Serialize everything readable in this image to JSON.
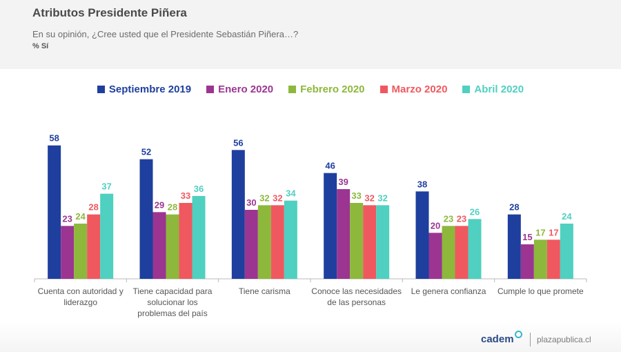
{
  "header": {
    "title": "Atributos Presidente Piñera",
    "subtitle": "En su opinión, ¿Cree usted que el Presidente Sebastián Piñera…?",
    "unit": "% Sí"
  },
  "footer": {
    "logo": "cadem",
    "site": "plazapublica.cl"
  },
  "chart_data": {
    "type": "bar",
    "title": "Atributos Presidente Piñera",
    "xlabel": "",
    "ylabel": "% Sí",
    "ylim": [
      0,
      60
    ],
    "grid": false,
    "legend_position": "top-center",
    "categories": [
      [
        "Cuenta con autoridad y",
        "liderazgo"
      ],
      [
        "Tiene capacidad para",
        "solucionar los",
        "problemas del país"
      ],
      [
        "Tiene carisma"
      ],
      [
        "Conoce las necesidades",
        "de las personas"
      ],
      [
        "Le genera confianza"
      ],
      [
        "Cumple lo que promete"
      ]
    ],
    "series": [
      {
        "name": "Septiembre 2019",
        "color": "#1e3f9e",
        "values": [
          58,
          52,
          56,
          46,
          38,
          28
        ]
      },
      {
        "name": "Enero 2020",
        "color": "#9b3591",
        "values": [
          23,
          29,
          30,
          39,
          20,
          15
        ]
      },
      {
        "name": "Febrero 2020",
        "color": "#8db83c",
        "values": [
          24,
          28,
          32,
          33,
          23,
          17
        ]
      },
      {
        "name": "Marzo 2020",
        "color": "#f0585f",
        "values": [
          28,
          33,
          32,
          32,
          23,
          17
        ]
      },
      {
        "name": "Abril 2020",
        "color": "#4fd0c0",
        "values": [
          37,
          36,
          34,
          32,
          26,
          24
        ]
      }
    ]
  }
}
